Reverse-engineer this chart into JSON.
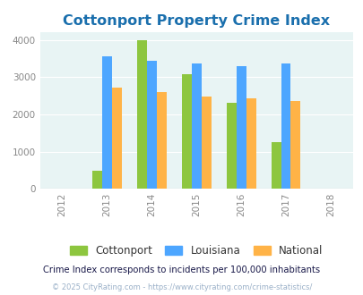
{
  "title": "Cottonport Property Crime Index",
  "years": [
    2012,
    2013,
    2014,
    2015,
    2016,
    2017,
    2018
  ],
  "categories": [
    "Cottonport",
    "Louisiana",
    "National"
  ],
  "data": {
    "Cottonport": {
      "2013": 480,
      "2014": 4000,
      "2015": 3080,
      "2016": 2320,
      "2017": 1260
    },
    "Louisiana": {
      "2013": 3560,
      "2014": 3440,
      "2015": 3360,
      "2016": 3300,
      "2017": 3370
    },
    "National": {
      "2013": 2720,
      "2014": 2590,
      "2015": 2490,
      "2016": 2440,
      "2017": 2360
    }
  },
  "colors": {
    "Cottonport": "#8dc63f",
    "Louisiana": "#4da6ff",
    "National": "#ffb347"
  },
  "xlim": [
    2011.5,
    2018.5
  ],
  "ylim": [
    0,
    4200
  ],
  "yticks": [
    0,
    1000,
    2000,
    3000,
    4000
  ],
  "title_color": "#1a6fad",
  "title_fontsize": 11.5,
  "background_color": "#e8f4f4",
  "subtitle": "Crime Index corresponds to incidents per 100,000 inhabitants",
  "footnote": "© 2025 CityRating.com - https://www.cityrating.com/crime-statistics/",
  "subtitle_color": "#1a1a4a",
  "footnote_color": "#9ab0c8",
  "bar_width": 0.22
}
